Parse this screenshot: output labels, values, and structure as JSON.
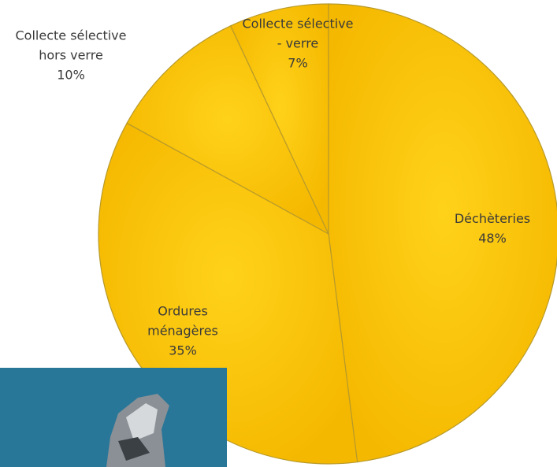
{
  "chart_data": {
    "type": "pie",
    "categories": [
      "Déchèteries",
      "Ordures ménagères",
      "Collecte sélective hors verre",
      "Collecte sélective - verre"
    ],
    "values": [
      48,
      35,
      10,
      7
    ],
    "value_labels": [
      "48%",
      "35%",
      "10%",
      "7%"
    ],
    "color": "#ffc800"
  }
}
